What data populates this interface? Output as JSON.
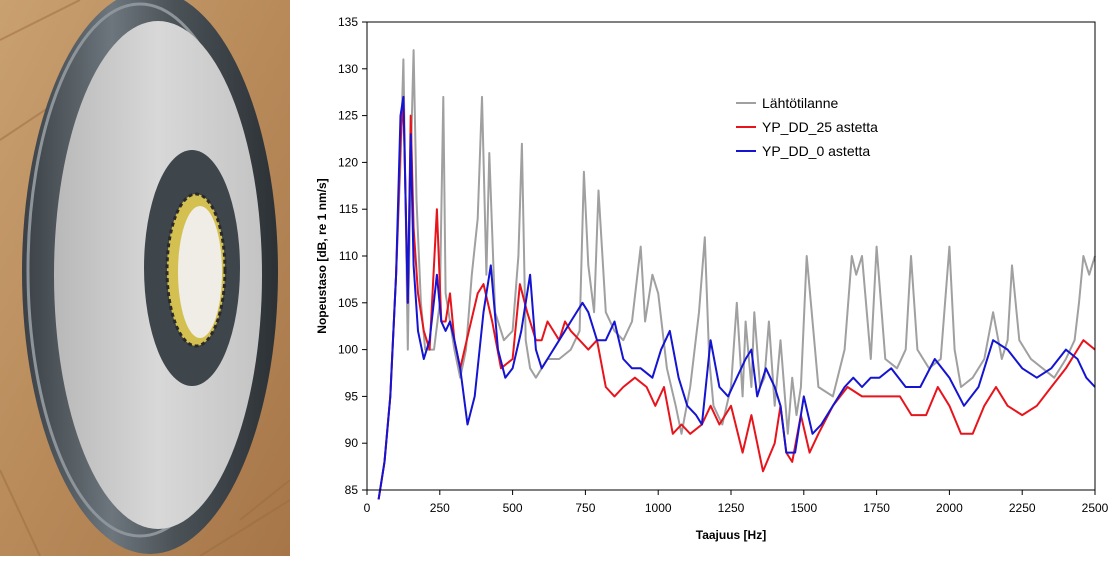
{
  "chart_data": {
    "type": "line",
    "xlabel": "Taajuus [Hz]",
    "ylabel": "Nopeustaso [dB, re 1 nm/s]",
    "xlim": [
      0,
      2500
    ],
    "ylim": [
      85,
      135
    ],
    "x_ticks": [
      0,
      250,
      500,
      750,
      1000,
      1250,
      1500,
      1750,
      2000,
      2250,
      2500
    ],
    "y_ticks": [
      85,
      90,
      95,
      100,
      105,
      110,
      115,
      120,
      125,
      130,
      135
    ],
    "grid": false,
    "legend_position": "top-right (inside plot)",
    "series": [
      {
        "name": "Lähtötilanne",
        "color": "#a0a0a0",
        "x": [
          40,
          60,
          80,
          100,
          115,
          125,
          140,
          150,
          160,
          170,
          185,
          200,
          230,
          250,
          262,
          270,
          285,
          300,
          320,
          340,
          360,
          380,
          395,
          410,
          420,
          440,
          470,
          500,
          520,
          532,
          545,
          560,
          580,
          600,
          620,
          660,
          700,
          730,
          745,
          760,
          780,
          795,
          820,
          850,
          880,
          910,
          940,
          955,
          980,
          1000,
          1030,
          1060,
          1080,
          1110,
          1140,
          1160,
          1175,
          1190,
          1220,
          1250,
          1270,
          1290,
          1300,
          1320,
          1330,
          1350,
          1365,
          1380,
          1400,
          1420,
          1445,
          1460,
          1475,
          1490,
          1510,
          1550,
          1600,
          1640,
          1665,
          1680,
          1700,
          1730,
          1750,
          1780,
          1820,
          1850,
          1868,
          1890,
          1930,
          1970,
          2000,
          2018,
          2040,
          2080,
          2120,
          2150,
          2180,
          2200,
          2215,
          2240,
          2280,
          2320,
          2360,
          2400,
          2430,
          2445,
          2460,
          2480,
          2500
        ],
        "values": [
          84,
          88,
          95,
          108,
          120,
          131,
          100,
          120,
          132,
          116,
          105,
          100,
          100,
          105,
          127,
          106,
          103,
          100,
          97,
          100,
          108,
          114,
          127,
          108,
          121,
          104,
          101,
          102,
          110,
          122,
          101,
          98,
          97,
          98,
          99,
          99,
          100,
          102,
          119,
          109,
          104,
          117,
          104,
          102,
          101,
          103,
          111,
          103,
          108,
          106,
          98,
          94,
          91,
          96,
          104,
          112,
          99,
          94,
          92,
          96,
          105,
          95,
          103,
          96,
          104,
          96,
          97,
          103,
          94,
          101,
          91,
          97,
          93,
          96,
          110,
          96,
          95,
          100,
          110,
          108,
          110,
          99,
          111,
          99,
          98,
          100,
          110,
          100,
          98,
          99,
          111,
          100,
          96,
          97,
          99,
          104,
          99,
          101,
          109,
          101,
          99,
          98,
          97,
          99,
          101,
          105,
          110,
          108,
          110
        ]
      },
      {
        "name": "YP_DD_25 astetta",
        "color": "#e8141c",
        "x": [
          40,
          60,
          80,
          100,
          115,
          125,
          140,
          150,
          160,
          175,
          195,
          215,
          240,
          255,
          270,
          285,
          300,
          320,
          350,
          380,
          400,
          430,
          460,
          500,
          525,
          550,
          580,
          600,
          620,
          640,
          660,
          680,
          700,
          730,
          760,
          790,
          820,
          850,
          880,
          920,
          960,
          990,
          1020,
          1050,
          1080,
          1110,
          1150,
          1180,
          1210,
          1250,
          1290,
          1320,
          1360,
          1400,
          1420,
          1440,
          1460,
          1490,
          1520,
          1550,
          1600,
          1650,
          1700,
          1750,
          1800,
          1830,
          1870,
          1920,
          1960,
          2000,
          2040,
          2080,
          2120,
          2160,
          2200,
          2250,
          2300,
          2350,
          2400,
          2440,
          2460,
          2500
        ],
        "values": [
          84,
          88,
          95,
          108,
          122,
          127,
          105,
          125,
          113,
          106,
          102,
          100,
          115,
          103,
          103,
          106,
          101,
          98,
          102,
          106,
          107,
          103,
          98,
          99,
          107,
          104,
          101,
          101,
          103,
          102,
          101,
          103,
          102,
          101,
          100,
          101,
          96,
          95,
          96,
          97,
          96,
          94,
          96,
          91,
          92,
          91,
          92,
          94,
          92,
          94,
          89,
          93,
          87,
          90,
          94,
          89,
          88,
          93,
          89,
          91,
          94,
          96,
          95,
          95,
          95,
          95,
          93,
          93,
          96,
          94,
          91,
          91,
          94,
          96,
          94,
          93,
          94,
          96,
          98,
          100,
          101,
          100
        ]
      },
      {
        "name": "YP_DD_0 astetta",
        "color": "#1414d2",
        "x": [
          40,
          60,
          80,
          100,
          115,
          125,
          140,
          150,
          160,
          175,
          195,
          215,
          240,
          255,
          270,
          285,
          300,
          320,
          345,
          370,
          400,
          425,
          450,
          475,
          500,
          530,
          560,
          580,
          600,
          620,
          660,
          700,
          740,
          760,
          790,
          820,
          850,
          880,
          910,
          940,
          980,
          1010,
          1040,
          1070,
          1100,
          1130,
          1150,
          1180,
          1210,
          1240,
          1270,
          1300,
          1320,
          1340,
          1370,
          1400,
          1420,
          1440,
          1470,
          1500,
          1530,
          1560,
          1600,
          1640,
          1670,
          1700,
          1730,
          1760,
          1800,
          1850,
          1900,
          1950,
          2000,
          2050,
          2100,
          2150,
          2200,
          2250,
          2300,
          2350,
          2400,
          2440,
          2470,
          2500
        ],
        "values": [
          84,
          88,
          95,
          108,
          125,
          127,
          105,
          123,
          109,
          102,
          99,
          101,
          108,
          103,
          102,
          103,
          101,
          98,
          92,
          95,
          104,
          109,
          100,
          97,
          98,
          102,
          108,
          100,
          98,
          99,
          101,
          103,
          105,
          104,
          101,
          101,
          103,
          99,
          98,
          98,
          97,
          100,
          102,
          97,
          94,
          93,
          92,
          101,
          96,
          95,
          97,
          99,
          100,
          95,
          98,
          96,
          94,
          89,
          89,
          95,
          91,
          92,
          94,
          96,
          97,
          96,
          97,
          97,
          98,
          96,
          96,
          99,
          97,
          94,
          96,
          101,
          100,
          98,
          97,
          98,
          100,
          99,
          97,
          96
        ]
      }
    ]
  },
  "photo": {
    "subject": "disc-photo"
  }
}
